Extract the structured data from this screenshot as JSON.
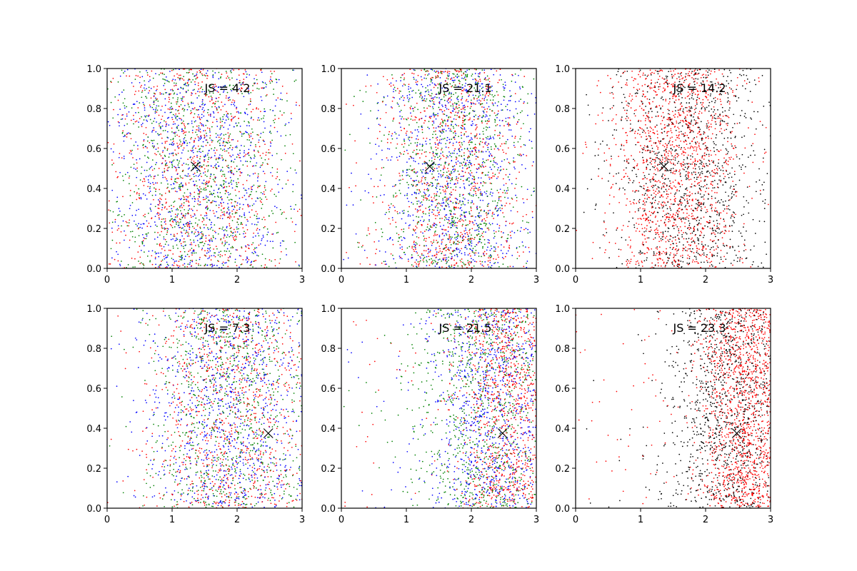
{
  "chart_data": [
    {
      "type": "scatter",
      "annotation": "JS = 4.2",
      "xlim": [
        0,
        3
      ],
      "ylim": [
        0,
        1
      ],
      "x_ticks": [
        0,
        1,
        2,
        3
      ],
      "y_ticks": [
        0.0,
        0.2,
        0.4,
        0.6,
        0.8,
        1.0
      ],
      "x_tick_labels": [
        "0",
        "1",
        "2",
        "3"
      ],
      "y_tick_labels": [
        "0.0",
        "0.2",
        "0.4",
        "0.6",
        "0.8",
        "1.0"
      ],
      "marker": {
        "x": 1.36,
        "y": 0.51,
        "symbol": "x"
      },
      "series": [
        {
          "color": "#ff0000",
          "count": 900,
          "x_mean": 1.4,
          "x_sd": 0.75
        },
        {
          "color": "#0000ff",
          "count": 900,
          "x_mean": 1.4,
          "x_sd": 0.75
        },
        {
          "color": "#008000",
          "count": 900,
          "x_mean": 1.4,
          "x_sd": 0.75
        }
      ]
    },
    {
      "type": "scatter",
      "annotation": "JS = 21.1",
      "xlim": [
        0,
        3
      ],
      "ylim": [
        0,
        1
      ],
      "x_ticks": [
        0,
        1,
        2,
        3
      ],
      "y_ticks": [
        0.0,
        0.2,
        0.4,
        0.6,
        0.8,
        1.0
      ],
      "x_tick_labels": [
        "0",
        "1",
        "2",
        "3"
      ],
      "y_tick_labels": [
        "0.0",
        "0.2",
        "0.4",
        "0.6",
        "0.8",
        "1.0"
      ],
      "marker": {
        "x": 1.36,
        "y": 0.51,
        "symbol": "x"
      },
      "series": [
        {
          "color": "#ff0000",
          "count": 900,
          "x_mean": 1.75,
          "x_sd": 0.55
        },
        {
          "color": "#0000ff",
          "count": 900,
          "x_mean": 1.75,
          "x_sd": 0.6
        },
        {
          "color": "#008000",
          "count": 900,
          "x_mean": 1.75,
          "x_sd": 0.55
        }
      ]
    },
    {
      "type": "scatter",
      "annotation": "JS = 14.2",
      "xlim": [
        0,
        3
      ],
      "ylim": [
        0,
        1
      ],
      "x_ticks": [
        0,
        1,
        2,
        3
      ],
      "y_ticks": [
        0.0,
        0.2,
        0.4,
        0.6,
        0.8,
        1.0
      ],
      "x_tick_labels": [
        "0",
        "1",
        "2",
        "3"
      ],
      "y_tick_labels": [
        "0.0",
        "0.2",
        "0.4",
        "0.6",
        "0.8",
        "1.0"
      ],
      "marker": {
        "x": 1.36,
        "y": 0.51,
        "symbol": "x"
      },
      "series": [
        {
          "color": "#ff0000",
          "count": 1400,
          "x_mean": 1.55,
          "x_sd": 0.5
        },
        {
          "color": "#000000",
          "count": 1100,
          "x_mean": 1.75,
          "x_sd": 0.6
        }
      ]
    },
    {
      "type": "scatter",
      "annotation": "JS = 7.3",
      "xlim": [
        0,
        3
      ],
      "ylim": [
        0,
        1
      ],
      "x_ticks": [
        0,
        1,
        2,
        3
      ],
      "y_ticks": [
        0.0,
        0.2,
        0.4,
        0.6,
        0.8,
        1.0
      ],
      "x_tick_labels": [
        "0",
        "1",
        "2",
        "3"
      ],
      "y_tick_labels": [
        "0.0",
        "0.2",
        "0.4",
        "0.6",
        "0.8",
        "1.0"
      ],
      "marker": {
        "x": 2.48,
        "y": 0.375,
        "symbol": "x"
      },
      "series": [
        {
          "color": "#ff0000",
          "count": 900,
          "x_mean": 1.9,
          "x_sd": 0.65
        },
        {
          "color": "#0000ff",
          "count": 900,
          "x_mean": 1.9,
          "x_sd": 0.65
        },
        {
          "color": "#008000",
          "count": 900,
          "x_mean": 1.9,
          "x_sd": 0.65
        }
      ]
    },
    {
      "type": "scatter",
      "annotation": "JS = 21.5",
      "xlim": [
        0,
        3
      ],
      "ylim": [
        0,
        1
      ],
      "x_ticks": [
        0,
        1,
        2,
        3
      ],
      "y_ticks": [
        0.0,
        0.2,
        0.4,
        0.6,
        0.8,
        1.0
      ],
      "x_tick_labels": [
        "0",
        "1",
        "2",
        "3"
      ],
      "y_tick_labels": [
        "0.0",
        "0.2",
        "0.4",
        "0.6",
        "0.8",
        "1.0"
      ],
      "marker": {
        "x": 2.48,
        "y": 0.375,
        "symbol": "x"
      },
      "series": [
        {
          "color": "#ff0000",
          "count": 1000,
          "x_mean": 2.6,
          "x_sd": 0.4
        },
        {
          "color": "#0000ff",
          "count": 900,
          "x_mean": 2.35,
          "x_sd": 0.5
        },
        {
          "color": "#008000",
          "count": 900,
          "x_mean": 2.2,
          "x_sd": 0.6
        }
      ]
    },
    {
      "type": "scatter",
      "annotation": "JS = 23.3",
      "xlim": [
        0,
        3
      ],
      "ylim": [
        0,
        1
      ],
      "x_ticks": [
        0,
        1,
        2,
        3
      ],
      "y_ticks": [
        0.0,
        0.2,
        0.4,
        0.6,
        0.8,
        1.0
      ],
      "x_tick_labels": [
        "0",
        "1",
        "2",
        "3"
      ],
      "y_tick_labels": [
        "0.0",
        "0.2",
        "0.4",
        "0.6",
        "0.8",
        "1.0"
      ],
      "marker": {
        "x": 2.48,
        "y": 0.375,
        "symbol": "x"
      },
      "series": [
        {
          "color": "#ff0000",
          "count": 1500,
          "x_mean": 2.65,
          "x_sd": 0.38
        },
        {
          "color": "#000000",
          "count": 1100,
          "x_mean": 2.35,
          "x_sd": 0.5
        }
      ]
    }
  ]
}
